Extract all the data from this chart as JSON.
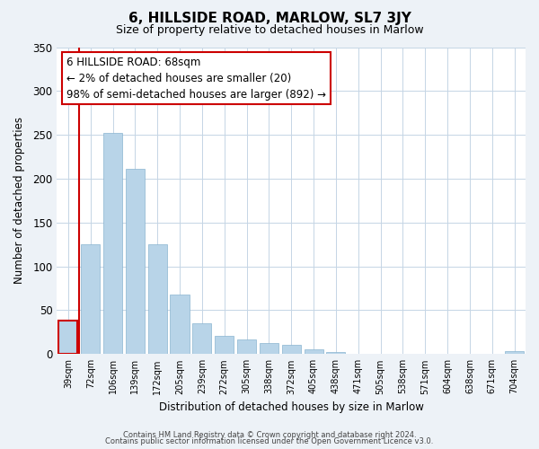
{
  "title": "6, HILLSIDE ROAD, MARLOW, SL7 3JY",
  "subtitle": "Size of property relative to detached houses in Marlow",
  "xlabel": "Distribution of detached houses by size in Marlow",
  "ylabel": "Number of detached properties",
  "categories": [
    "39sqm",
    "72sqm",
    "106sqm",
    "139sqm",
    "172sqm",
    "205sqm",
    "239sqm",
    "272sqm",
    "305sqm",
    "338sqm",
    "372sqm",
    "405sqm",
    "438sqm",
    "471sqm",
    "505sqm",
    "538sqm",
    "571sqm",
    "604sqm",
    "638sqm",
    "671sqm",
    "704sqm"
  ],
  "values": [
    38,
    125,
    252,
    211,
    125,
    68,
    35,
    21,
    17,
    13,
    11,
    5,
    2,
    0,
    0,
    0,
    0,
    0,
    0,
    0,
    3
  ],
  "bar_color": "#b8d4e8",
  "bar_edge_color": "#8ab4d0",
  "highlight_bar_index": 0,
  "highlight_color": "#cc0000",
  "ylim": [
    0,
    350
  ],
  "yticks": [
    0,
    50,
    100,
    150,
    200,
    250,
    300,
    350
  ],
  "annotation_line1": "6 HILLSIDE ROAD: 68sqm",
  "annotation_line2": "← 2% of detached houses are smaller (20)",
  "annotation_line3": "98% of semi-detached houses are larger (892) →",
  "footer_line1": "Contains HM Land Registry data © Crown copyright and database right 2024.",
  "footer_line2": "Contains public sector information licensed under the Open Government Licence v3.0.",
  "bg_color": "#edf2f7",
  "plot_bg_color": "#ffffff",
  "grid_color": "#c5d5e5"
}
